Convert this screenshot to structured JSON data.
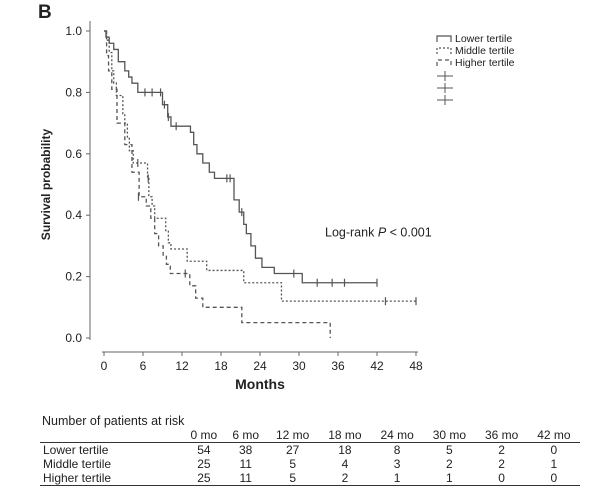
{
  "panel_label": "B",
  "chart_data": {
    "type": "line",
    "subtype": "kaplan-meier",
    "xlabel": "Months",
    "ylabel": "Survival probability",
    "xlim": [
      0,
      48
    ],
    "ylim": [
      0,
      1
    ],
    "xticks": [
      "0",
      "6",
      "12",
      "18",
      "24",
      "30",
      "36",
      "42",
      "48"
    ],
    "yticks": [
      "0.0",
      "0.2",
      "0.4",
      "0.6",
      "0.8",
      "1.0"
    ],
    "annotation": {
      "text": "Log-rank ",
      "italic": "P",
      "rest": " < 0.001",
      "x": 34,
      "y": 0.33
    },
    "legend_position": "top-right",
    "grid": false,
    "series": [
      {
        "name": "Lower tertile",
        "style": "solid",
        "steps": [
          [
            0,
            1.0
          ],
          [
            0.3,
            0.98
          ],
          [
            0.8,
            0.96
          ],
          [
            1.5,
            0.94
          ],
          [
            2.2,
            0.9
          ],
          [
            3.2,
            0.87
          ],
          [
            3.8,
            0.85
          ],
          [
            4.3,
            0.83
          ],
          [
            5.2,
            0.8
          ],
          [
            9,
            0.76
          ],
          [
            9.8,
            0.72
          ],
          [
            10.3,
            0.69
          ],
          [
            13.3,
            0.67
          ],
          [
            13.8,
            0.63
          ],
          [
            14.3,
            0.6
          ],
          [
            15.2,
            0.57
          ],
          [
            16.2,
            0.54
          ],
          [
            17,
            0.52
          ],
          [
            20,
            0.45
          ],
          [
            20.8,
            0.41
          ],
          [
            21.5,
            0.37
          ],
          [
            21.9,
            0.34
          ],
          [
            22.6,
            0.3
          ],
          [
            23.3,
            0.26
          ],
          [
            24.3,
            0.23
          ],
          [
            26.2,
            0.21
          ],
          [
            30.5,
            0.18
          ]
        ],
        "end_x": 42,
        "censored": [
          [
            6.3,
            0.8
          ],
          [
            7.4,
            0.8
          ],
          [
            8.7,
            0.8
          ],
          [
            9.3,
            0.76
          ],
          [
            9.9,
            0.72
          ],
          [
            11.1,
            0.69
          ],
          [
            18.9,
            0.52
          ],
          [
            19.4,
            0.52
          ],
          [
            21.2,
            0.41
          ],
          [
            29.2,
            0.21
          ],
          [
            32.8,
            0.18
          ],
          [
            35.1,
            0.18
          ],
          [
            37,
            0.18
          ],
          [
            42,
            0.18
          ]
        ]
      },
      {
        "name": "Middle tertile",
        "style": "dotted",
        "steps": [
          [
            0,
            1.0
          ],
          [
            0.4,
            0.97
          ],
          [
            0.8,
            0.93
          ],
          [
            1.2,
            0.87
          ],
          [
            1.5,
            0.83
          ],
          [
            1.9,
            0.79
          ],
          [
            2.9,
            0.73
          ],
          [
            3.2,
            0.7
          ],
          [
            3.6,
            0.65
          ],
          [
            3.9,
            0.61
          ],
          [
            4.5,
            0.57
          ],
          [
            6.7,
            0.52
          ],
          [
            6.9,
            0.46
          ],
          [
            7.4,
            0.43
          ],
          [
            7.8,
            0.39
          ],
          [
            9.5,
            0.35
          ],
          [
            9.9,
            0.31
          ],
          [
            10.3,
            0.29
          ],
          [
            12.8,
            0.25
          ],
          [
            15.8,
            0.22
          ],
          [
            21.5,
            0.18
          ],
          [
            27.3,
            0.12
          ]
        ],
        "end_x": 48,
        "censored": [
          [
            5.2,
            0.57
          ],
          [
            6.8,
            0.52
          ],
          [
            43.3,
            0.12
          ],
          [
            48,
            0.12
          ]
        ]
      },
      {
        "name": "Higher tertile",
        "style": "dashed",
        "steps": [
          [
            0,
            1.0
          ],
          [
            0.4,
            0.92
          ],
          [
            0.7,
            0.87
          ],
          [
            1.2,
            0.81
          ],
          [
            2.0,
            0.7
          ],
          [
            3.2,
            0.63
          ],
          [
            4.3,
            0.54
          ],
          [
            5.4,
            0.46
          ],
          [
            6.5,
            0.43
          ],
          [
            7.2,
            0.39
          ],
          [
            7.8,
            0.34
          ],
          [
            8.4,
            0.3
          ],
          [
            9.1,
            0.27
          ],
          [
            9.6,
            0.24
          ],
          [
            10.2,
            0.21
          ],
          [
            13.2,
            0.17
          ],
          [
            14.1,
            0.13
          ],
          [
            15.2,
            0.1
          ],
          [
            21.2,
            0.05
          ],
          [
            34.8,
            0.0
          ]
        ],
        "end_x": 34.8,
        "censored": [
          [
            5.3,
            0.46
          ],
          [
            12.5,
            0.21
          ]
        ]
      }
    ],
    "risk_table": {
      "title": "Number of patients at risk",
      "columns": [
        "0 mo",
        "6 mo",
        "12 mo",
        "18 mo",
        "24 mo",
        "30 mo",
        "36 mo",
        "42 mo"
      ],
      "rows": [
        {
          "label": "Lower tertile",
          "values": [
            "54",
            "38",
            "27",
            "18",
            "8",
            "5",
            "2",
            "0"
          ]
        },
        {
          "label": "Middle tertile",
          "values": [
            "25",
            "11",
            "5",
            "4",
            "3",
            "2",
            "2",
            "1"
          ]
        },
        {
          "label": "Higher tertile",
          "values": [
            "25",
            "11",
            "5",
            "2",
            "1",
            "1",
            "0",
            "0"
          ]
        }
      ]
    }
  }
}
